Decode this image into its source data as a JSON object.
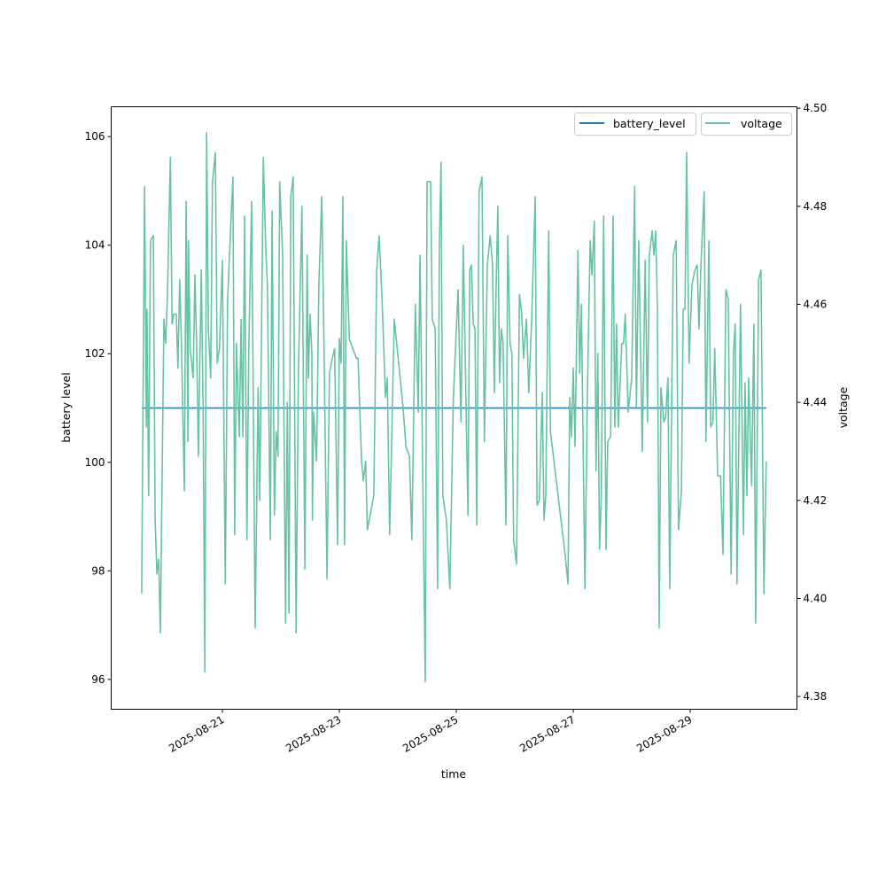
{
  "chart_data": {
    "type": "line",
    "xlabel": "time",
    "ylabel_left": "battery level",
    "ylabel_right": "voltage",
    "x_unit": "days since 2025-08-21",
    "x_ticks": [
      {
        "value": 0,
        "label": "2025-08-21"
      },
      {
        "value": 2,
        "label": "2025-08-23"
      },
      {
        "value": 4,
        "label": "2025-08-25"
      },
      {
        "value": 6,
        "label": "2025-08-27"
      },
      {
        "value": 8,
        "label": "2025-08-29"
      }
    ],
    "y_left_ticks": [
      96,
      98,
      100,
      102,
      104,
      106
    ],
    "y_left_lim": [
      95.45,
      106.55
    ],
    "y_right_ticks": [
      "4.38",
      "4.40",
      "4.42",
      "4.44",
      "4.46",
      "4.48",
      "4.50"
    ],
    "y_right_lim": [
      4.3774,
      4.5003
    ],
    "legend": {
      "placement": "top-right",
      "entries": [
        "battery_level",
        "voltage"
      ]
    },
    "colors": {
      "battery_level": "#1f77b4",
      "voltage": "#66c2a5"
    },
    "series": [
      {
        "name": "battery_level",
        "axis": "left",
        "points": [
          [
            -1.38,
            101
          ],
          [
            9.3,
            101
          ]
        ]
      },
      {
        "name": "voltage",
        "axis": "right",
        "points": [
          [
            -1.38,
            4.401
          ],
          [
            -1.33,
            4.484
          ],
          [
            -1.3,
            4.435
          ],
          [
            -1.29,
            4.459
          ],
          [
            -1.26,
            4.421
          ],
          [
            -1.23,
            4.473
          ],
          [
            -1.18,
            4.474
          ],
          [
            -1.15,
            4.416
          ],
          [
            -1.12,
            4.405
          ],
          [
            -1.09,
            4.408
          ],
          [
            -1.06,
            4.393
          ],
          [
            -1.0,
            4.457
          ],
          [
            -0.97,
            4.452
          ],
          [
            -0.94,
            4.462
          ],
          [
            -0.89,
            4.49
          ],
          [
            -0.86,
            4.456
          ],
          [
            -0.83,
            4.458
          ],
          [
            -0.79,
            4.458
          ],
          [
            -0.76,
            4.447
          ],
          [
            -0.73,
            4.465
          ],
          [
            -0.7,
            4.452
          ],
          [
            -0.65,
            4.422
          ],
          [
            -0.62,
            4.481
          ],
          [
            -0.59,
            4.432
          ],
          [
            -0.58,
            4.473
          ],
          [
            -0.55,
            4.451
          ],
          [
            -0.5,
            4.445
          ],
          [
            -0.47,
            4.466
          ],
          [
            -0.44,
            4.451
          ],
          [
            -0.41,
            4.429
          ],
          [
            -0.36,
            4.467
          ],
          [
            -0.33,
            4.439
          ],
          [
            -0.3,
            4.385
          ],
          [
            -0.27,
            4.495
          ],
          [
            -0.24,
            4.455
          ],
          [
            -0.2,
            4.445
          ],
          [
            -0.17,
            4.485
          ],
          [
            -0.12,
            4.491
          ],
          [
            -0.09,
            4.448
          ],
          [
            -0.05,
            4.451
          ],
          [
            0.0,
            4.469
          ],
          [
            0.05,
            4.403
          ],
          [
            0.09,
            4.461
          ],
          [
            0.14,
            4.475
          ],
          [
            0.18,
            4.486
          ],
          [
            0.21,
            4.413
          ],
          [
            0.24,
            4.452
          ],
          [
            0.29,
            4.433
          ],
          [
            0.32,
            4.457
          ],
          [
            0.35,
            4.433
          ],
          [
            0.38,
            4.478
          ],
          [
            0.42,
            4.412
          ],
          [
            0.45,
            4.45
          ],
          [
            0.5,
            4.481
          ],
          [
            0.56,
            4.394
          ],
          [
            0.61,
            4.443
          ],
          [
            0.64,
            4.42
          ],
          [
            0.7,
            4.49
          ],
          [
            0.74,
            4.472
          ],
          [
            0.77,
            4.464
          ],
          [
            0.82,
            4.412
          ],
          [
            0.85,
            4.479
          ],
          [
            0.89,
            4.417
          ],
          [
            0.92,
            4.434
          ],
          [
            0.95,
            4.429
          ],
          [
            0.98,
            4.485
          ],
          [
            1.03,
            4.47
          ],
          [
            1.08,
            4.395
          ],
          [
            1.11,
            4.44
          ],
          [
            1.14,
            4.397
          ],
          [
            1.17,
            4.482
          ],
          [
            1.21,
            4.486
          ],
          [
            1.26,
            4.393
          ],
          [
            1.3,
            4.446
          ],
          [
            1.36,
            4.48
          ],
          [
            1.41,
            4.406
          ],
          [
            1.45,
            4.47
          ],
          [
            1.47,
            4.445
          ],
          [
            1.5,
            4.458
          ],
          [
            1.53,
            4.45
          ],
          [
            1.54,
            4.416
          ],
          [
            1.56,
            4.438
          ],
          [
            1.61,
            4.428
          ],
          [
            1.65,
            4.464
          ],
          [
            1.7,
            4.482
          ],
          [
            1.74,
            4.45
          ],
          [
            1.79,
            4.404
          ],
          [
            1.83,
            4.446
          ],
          [
            1.88,
            4.449
          ],
          [
            1.92,
            4.451
          ],
          [
            1.97,
            4.411
          ],
          [
            2.0,
            4.453
          ],
          [
            2.03,
            4.448
          ],
          [
            2.06,
            4.482
          ],
          [
            2.09,
            4.411
          ],
          [
            2.12,
            4.473
          ],
          [
            2.17,
            4.453
          ],
          [
            2.23,
            4.451
          ],
          [
            2.29,
            4.449
          ],
          [
            2.32,
            4.449
          ],
          [
            2.38,
            4.428
          ],
          [
            2.41,
            4.424
          ],
          [
            2.45,
            4.428
          ],
          [
            2.48,
            4.414
          ],
          [
            2.59,
            4.421
          ],
          [
            2.64,
            4.467
          ],
          [
            2.68,
            4.474
          ],
          [
            2.73,
            4.461
          ],
          [
            2.79,
            4.441
          ],
          [
            2.82,
            4.445
          ],
          [
            2.86,
            4.413
          ],
          [
            2.94,
            4.457
          ],
          [
            3.09,
            4.439
          ],
          [
            3.14,
            4.431
          ],
          [
            3.2,
            4.429
          ],
          [
            3.24,
            4.412
          ],
          [
            3.3,
            4.46
          ],
          [
            3.35,
            4.438
          ],
          [
            3.38,
            4.47
          ],
          [
            3.47,
            4.383
          ],
          [
            3.5,
            4.485
          ],
          [
            3.56,
            4.485
          ],
          [
            3.59,
            4.457
          ],
          [
            3.64,
            4.455
          ],
          [
            3.68,
            4.402
          ],
          [
            3.71,
            4.472
          ],
          [
            3.74,
            4.489
          ],
          [
            3.77,
            4.421
          ],
          [
            3.83,
            4.416
          ],
          [
            3.89,
            4.402
          ],
          [
            3.95,
            4.441
          ],
          [
            4.03,
            4.463
          ],
          [
            4.08,
            4.436
          ],
          [
            4.12,
            4.472
          ],
          [
            4.2,
            4.417
          ],
          [
            4.23,
            4.467
          ],
          [
            4.26,
            4.468
          ],
          [
            4.29,
            4.456
          ],
          [
            4.32,
            4.455
          ],
          [
            4.35,
            4.415
          ],
          [
            4.39,
            4.483
          ],
          [
            4.44,
            4.486
          ],
          [
            4.48,
            4.432
          ],
          [
            4.53,
            4.468
          ],
          [
            4.58,
            4.474
          ],
          [
            4.62,
            4.468
          ],
          [
            4.65,
            4.442
          ],
          [
            4.68,
            4.463
          ],
          [
            4.71,
            4.48
          ],
          [
            4.74,
            4.444
          ],
          [
            4.77,
            4.455
          ],
          [
            4.8,
            4.452
          ],
          [
            4.85,
            4.415
          ],
          [
            4.88,
            4.474
          ],
          [
            4.92,
            4.452
          ],
          [
            4.95,
            4.45
          ],
          [
            4.98,
            4.412
          ],
          [
            5.03,
            4.407
          ],
          [
            5.08,
            4.462
          ],
          [
            5.12,
            4.458
          ],
          [
            5.15,
            4.449
          ],
          [
            5.2,
            4.457
          ],
          [
            5.24,
            4.442
          ],
          [
            5.29,
            4.457
          ],
          [
            5.35,
            4.482
          ],
          [
            5.38,
            4.419
          ],
          [
            5.42,
            4.42
          ],
          [
            5.47,
            4.442
          ],
          [
            5.5,
            4.416
          ],
          [
            5.53,
            4.421
          ],
          [
            5.58,
            4.475
          ],
          [
            5.61,
            4.434
          ],
          [
            5.86,
            4.409
          ],
          [
            5.91,
            4.403
          ],
          [
            5.94,
            4.441
          ],
          [
            5.97,
            4.433
          ],
          [
            6.0,
            4.447
          ],
          [
            6.03,
            4.431
          ],
          [
            6.08,
            4.471
          ],
          [
            6.11,
            4.446
          ],
          [
            6.14,
            4.46
          ],
          [
            6.2,
            4.402
          ],
          [
            6.24,
            4.44
          ],
          [
            6.29,
            4.473
          ],
          [
            6.32,
            4.466
          ],
          [
            6.36,
            4.477
          ],
          [
            6.39,
            4.426
          ],
          [
            6.42,
            4.45
          ],
          [
            6.45,
            4.41
          ],
          [
            6.48,
            4.421
          ],
          [
            6.52,
            4.478
          ],
          [
            6.56,
            4.41
          ],
          [
            6.59,
            4.432
          ],
          [
            6.64,
            4.433
          ],
          [
            6.68,
            4.478
          ],
          [
            6.71,
            4.435
          ],
          [
            6.74,
            4.456
          ],
          [
            6.77,
            4.435
          ],
          [
            6.83,
            4.452
          ],
          [
            6.86,
            4.452
          ],
          [
            6.89,
            4.458
          ],
          [
            6.94,
            4.438
          ],
          [
            7.0,
            4.445
          ],
          [
            7.05,
            4.484
          ],
          [
            7.08,
            4.439
          ],
          [
            7.12,
            4.473
          ],
          [
            7.18,
            4.43
          ],
          [
            7.23,
            4.469
          ],
          [
            7.27,
            4.436
          ],
          [
            7.3,
            4.47
          ],
          [
            7.35,
            4.475
          ],
          [
            7.38,
            4.47
          ],
          [
            7.41,
            4.475
          ],
          [
            7.44,
            4.459
          ],
          [
            7.47,
            4.394
          ],
          [
            7.5,
            4.443
          ],
          [
            7.55,
            4.436
          ],
          [
            7.58,
            4.437
          ],
          [
            7.62,
            4.445
          ],
          [
            7.65,
            4.402
          ],
          [
            7.71,
            4.47
          ],
          [
            7.76,
            4.473
          ],
          [
            7.8,
            4.414
          ],
          [
            7.85,
            4.422
          ],
          [
            7.88,
            4.459
          ],
          [
            7.91,
            4.459
          ],
          [
            7.94,
            4.491
          ],
          [
            7.98,
            4.448
          ],
          [
            8.03,
            4.464
          ],
          [
            8.08,
            4.467
          ],
          [
            8.12,
            4.468
          ],
          [
            8.15,
            4.455
          ],
          [
            8.18,
            4.467
          ],
          [
            8.24,
            4.483
          ],
          [
            8.27,
            4.432
          ],
          [
            8.32,
            4.473
          ],
          [
            8.35,
            4.435
          ],
          [
            8.39,
            4.436
          ],
          [
            8.42,
            4.451
          ],
          [
            8.47,
            4.425
          ],
          [
            8.52,
            4.425
          ],
          [
            8.56,
            4.409
          ],
          [
            8.61,
            4.463
          ],
          [
            8.65,
            4.461
          ],
          [
            8.7,
            4.405
          ],
          [
            8.74,
            4.45
          ],
          [
            8.77,
            4.456
          ],
          [
            8.8,
            4.403
          ],
          [
            8.86,
            4.46
          ],
          [
            8.91,
            4.413
          ],
          [
            8.94,
            4.444
          ],
          [
            8.97,
            4.421
          ],
          [
            9.0,
            4.445
          ],
          [
            9.05,
            4.423
          ],
          [
            9.09,
            4.456
          ],
          [
            9.12,
            4.395
          ],
          [
            9.17,
            4.465
          ],
          [
            9.21,
            4.467
          ],
          [
            9.26,
            4.401
          ],
          [
            9.3,
            4.428
          ]
        ]
      }
    ]
  }
}
